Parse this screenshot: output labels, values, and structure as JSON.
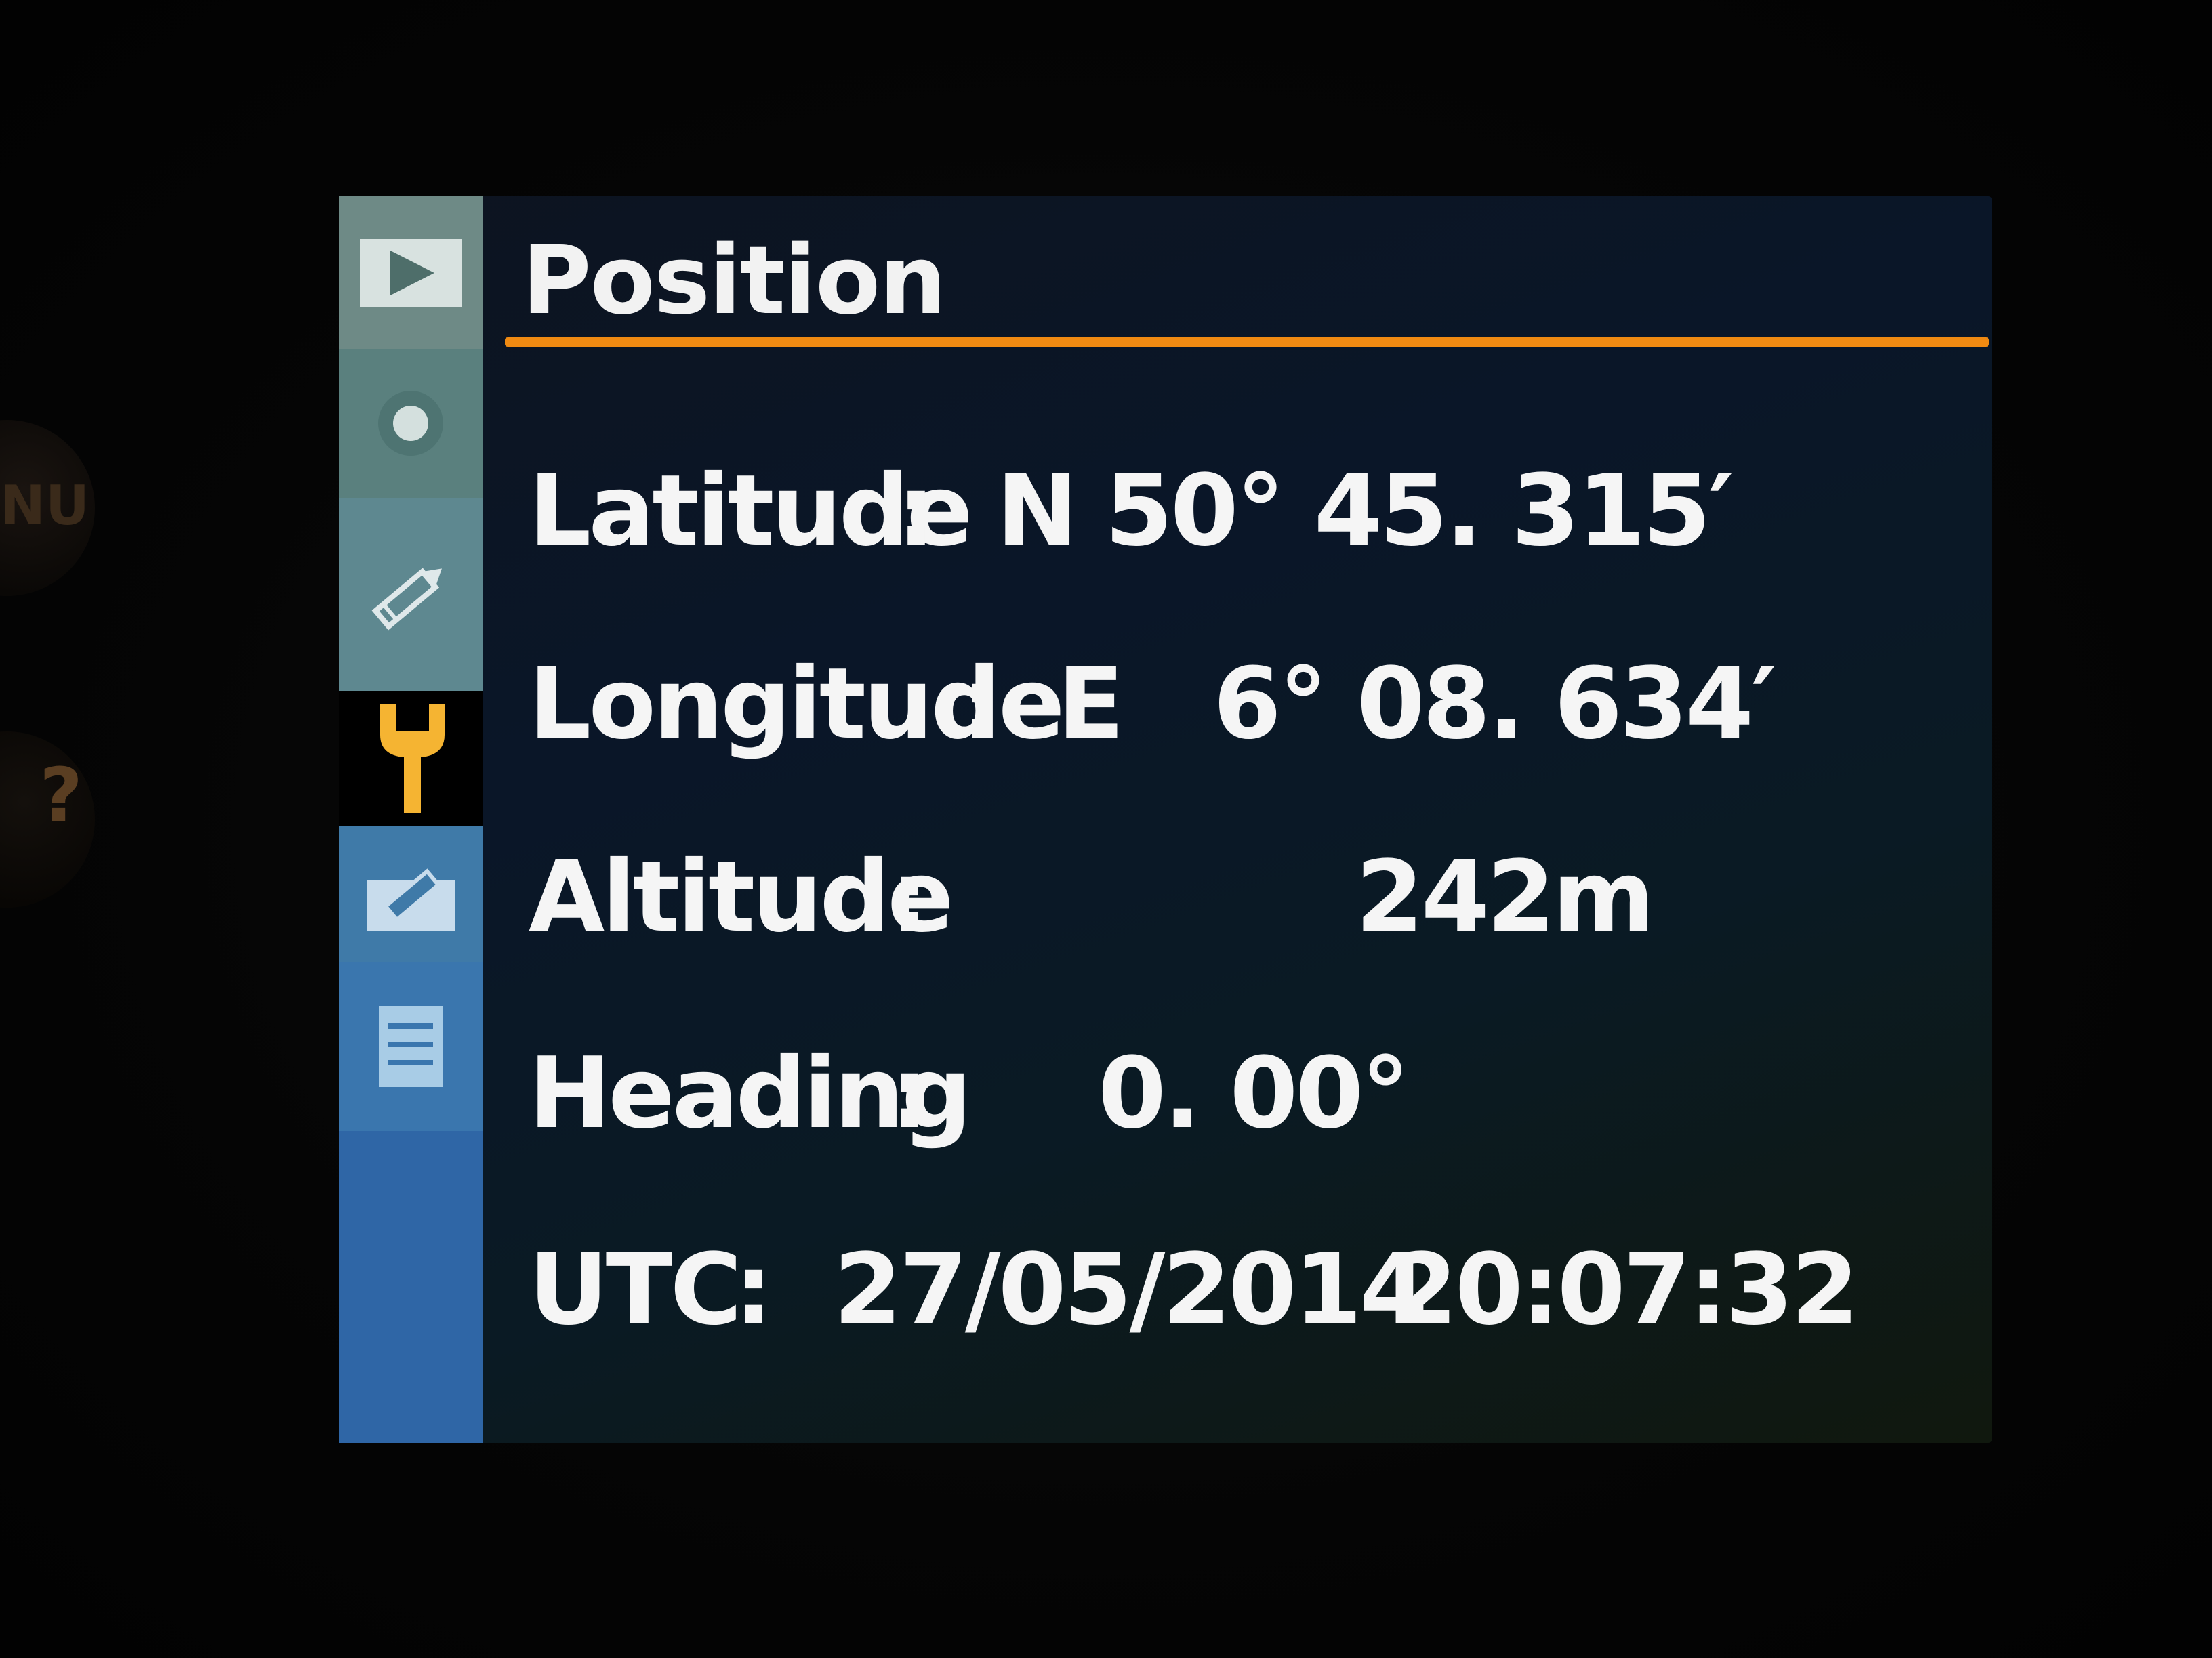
{
  "screen": {
    "title": "Position",
    "accent_color": "#f08a12"
  },
  "tabs": [
    {
      "icon": "playback-icon"
    },
    {
      "icon": "camera-icon"
    },
    {
      "icon": "pencil-icon"
    },
    {
      "icon": "wrench-icon",
      "selected": true
    },
    {
      "icon": "retouch-icon"
    },
    {
      "icon": "recent-settings-icon"
    }
  ],
  "position": {
    "latitude": {
      "label": "Latitude",
      "sep": ":",
      "hemisphere": "N",
      "value": "50° 45. 315′"
    },
    "longitude": {
      "label": "Longitude",
      "sep": ":",
      "hemisphere": "E",
      "value": "6° 08. 634′"
    },
    "altitude": {
      "label": "Altitude",
      "sep": ":",
      "value": "242m"
    },
    "heading": {
      "label": "Heading",
      "sep": ":",
      "value": "0. 00°"
    },
    "utc": {
      "label": "UTC",
      "sep": ":",
      "date": "27/05/2014",
      "time": "20:07:32"
    }
  },
  "body_buttons": {
    "menu_label": "NU",
    "help_label": "?"
  }
}
